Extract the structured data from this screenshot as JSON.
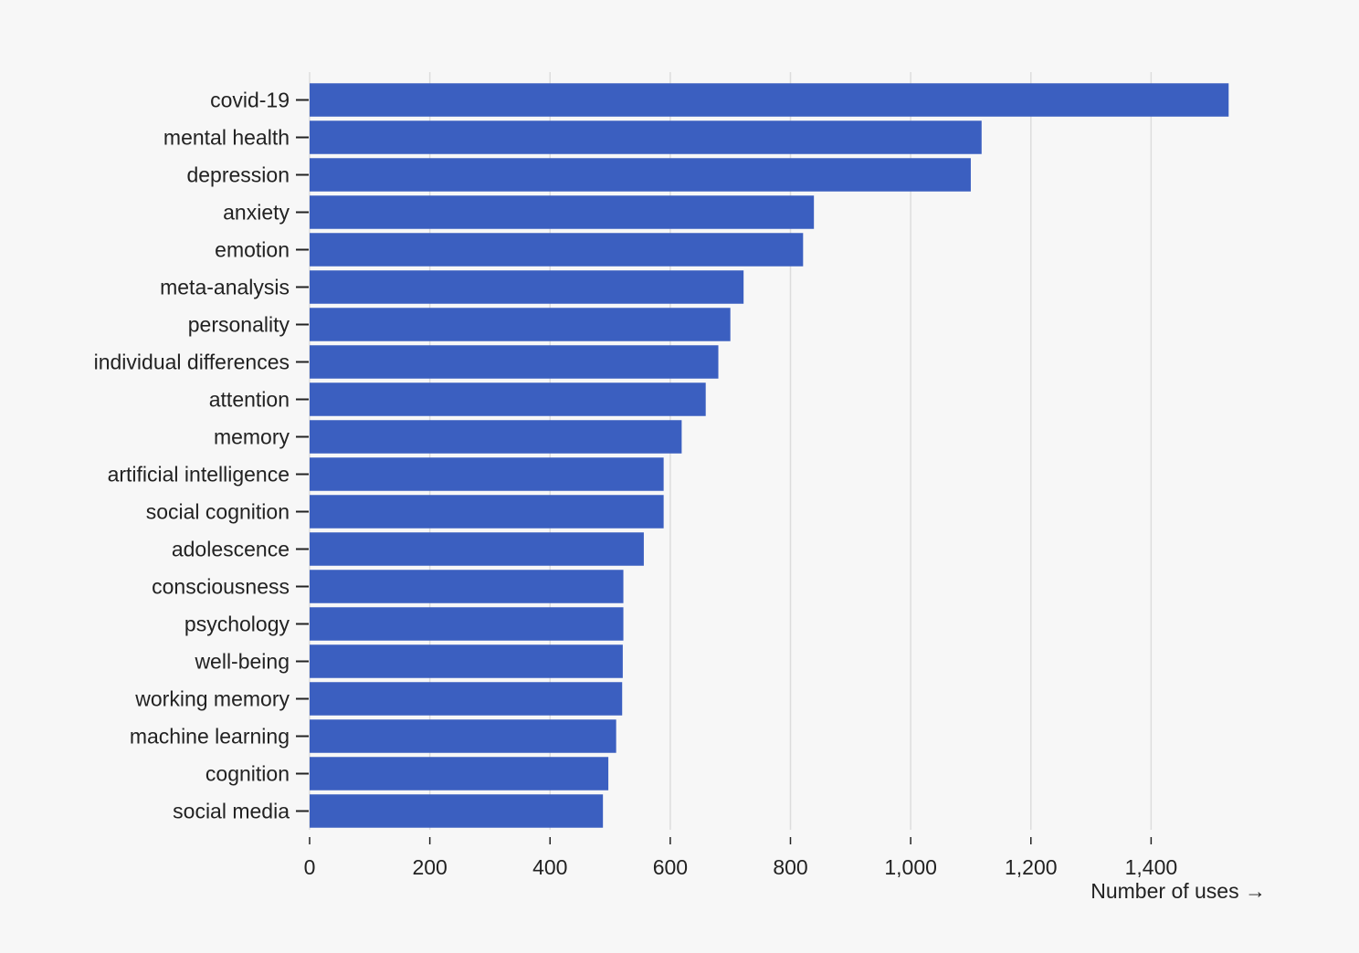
{
  "chart_data": {
    "type": "bar",
    "orientation": "horizontal",
    "categories": [
      "covid-19",
      "mental health",
      "depression",
      "anxiety",
      "emotion",
      "meta-analysis",
      "personality",
      "individual differences",
      "attention",
      "memory",
      "artificial intelligence",
      "social cognition",
      "adolescence",
      "consciousness",
      "psychology",
      "well-being",
      "working memory",
      "machine learning",
      "cognition",
      "social media"
    ],
    "values": [
      1529,
      1118,
      1100,
      839,
      821,
      722,
      700,
      680,
      659,
      619,
      589,
      589,
      556,
      522,
      522,
      521,
      520,
      510,
      497,
      488
    ],
    "xlabel": "Number of uses →",
    "xlim": [
      0,
      1600
    ],
    "xticks": [
      0,
      200,
      400,
      600,
      800,
      1000,
      1200,
      1400
    ],
    "xtick_labels": [
      "0",
      "200",
      "400",
      "600",
      "800",
      "1,000",
      "1,200",
      "1,400"
    ],
    "grid": "vertical",
    "bar_color": "#3b5fc0",
    "grid_color": "#dddddd",
    "text_color": "#222222",
    "background_color": "#f7f7f7"
  }
}
